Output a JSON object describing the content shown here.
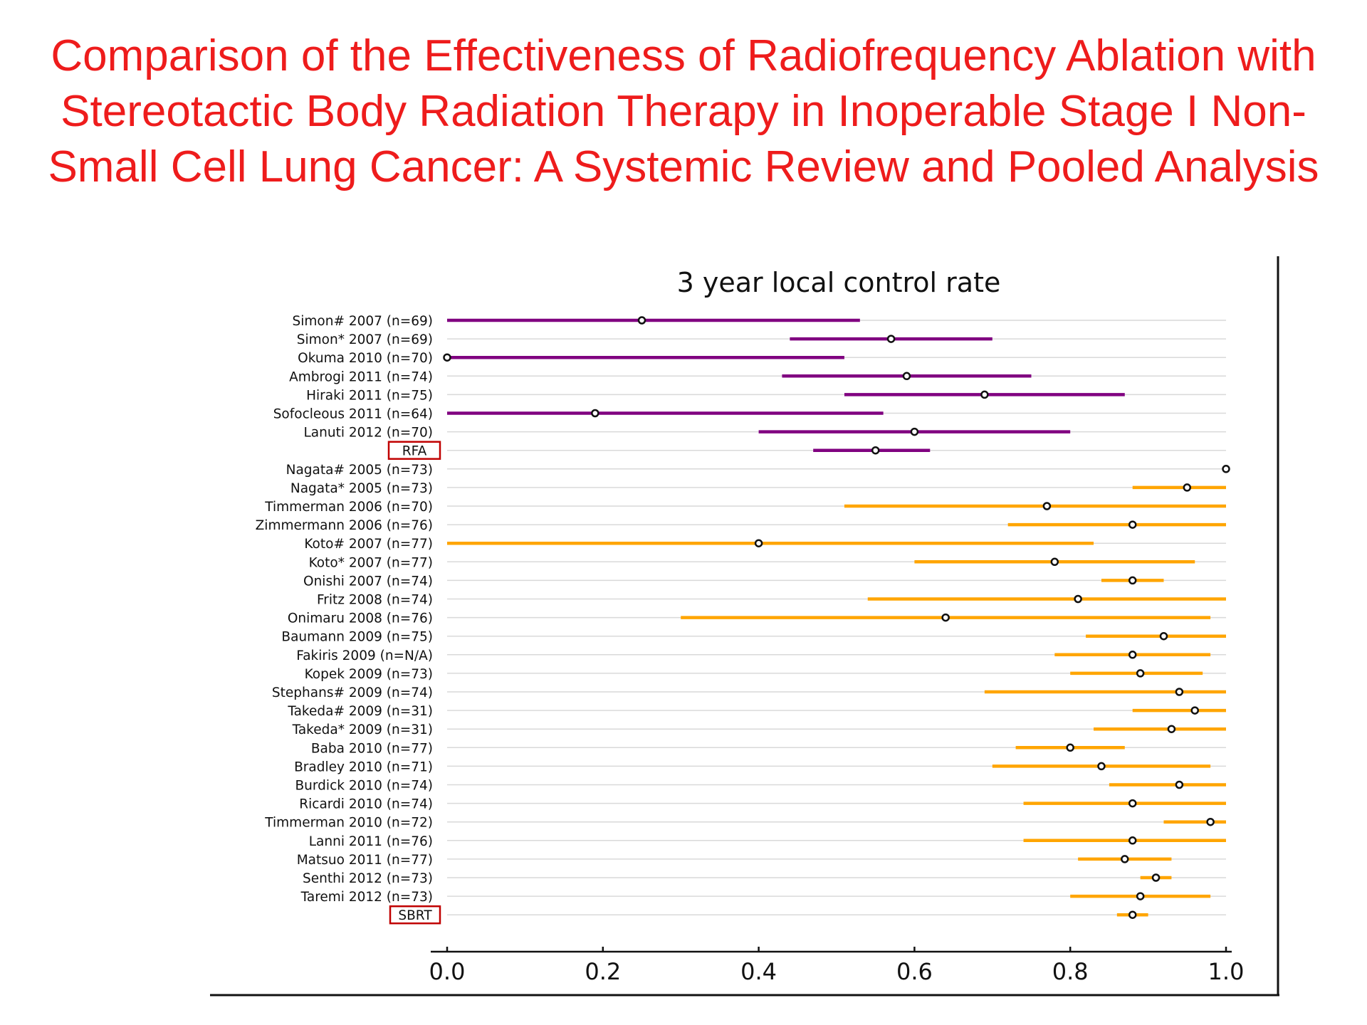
{
  "slide": {
    "title_lines": [
      "Comparison of the Effectiveness of Radiofrequency Ablation with",
      "Stereotactic Body Radiation Therapy in Inoperable Stage I Non-",
      "Small Cell Lung Cancer: A Systemic Review and Pooled Analysis"
    ]
  },
  "chart_data": {
    "type": "forest",
    "title": "3 year local control rate",
    "xlabel": "",
    "ylabel": "",
    "xlim": [
      0.0,
      1.0
    ],
    "x_ticks": [
      "0.0",
      "0.2",
      "0.4",
      "0.6",
      "0.8",
      "1.0"
    ],
    "grid": "horizontal",
    "colors": {
      "RFA": "#800080",
      "SBRT": "#ffa500",
      "title": "#ee1c1c",
      "box": "#c00000"
    },
    "rows": [
      {
        "label": "Simon# 2007 (n=69)",
        "group": "RFA",
        "estimate": 0.25,
        "ci": [
          0.0,
          0.53
        ]
      },
      {
        "label": "Simon* 2007 (n=69)",
        "group": "RFA",
        "estimate": 0.57,
        "ci": [
          0.44,
          0.7
        ]
      },
      {
        "label": "Okuma 2010 (n=70)",
        "group": "RFA",
        "estimate": 0.0,
        "ci": [
          0.0,
          0.51
        ]
      },
      {
        "label": "Ambrogi 2011 (n=74)",
        "group": "RFA",
        "estimate": 0.59,
        "ci": [
          0.43,
          0.75
        ]
      },
      {
        "label": "Hiraki 2011 (n=75)",
        "group": "RFA",
        "estimate": 0.69,
        "ci": [
          0.51,
          0.87
        ]
      },
      {
        "label": "Sofocleous 2011 (n=64)",
        "group": "RFA",
        "estimate": 0.19,
        "ci": [
          0.0,
          0.56
        ]
      },
      {
        "label": "Lanuti 2012 (n=70)",
        "group": "RFA",
        "estimate": 0.6,
        "ci": [
          0.4,
          0.8
        ]
      },
      {
        "label": "RFA",
        "group": "RFA",
        "estimate": 0.55,
        "ci": [
          0.47,
          0.62
        ],
        "pooled": true
      },
      {
        "label": "Nagata# 2005 (n=73)",
        "group": "SBRT",
        "estimate": 1.0,
        "ci": [
          1.0,
          1.0
        ]
      },
      {
        "label": "Nagata* 2005 (n=73)",
        "group": "SBRT",
        "estimate": 0.95,
        "ci": [
          0.88,
          1.0
        ]
      },
      {
        "label": "Timmerman 2006 (n=70)",
        "group": "SBRT",
        "estimate": 0.77,
        "ci": [
          0.51,
          1.0
        ]
      },
      {
        "label": "Zimmermann 2006 (n=76)",
        "group": "SBRT",
        "estimate": 0.88,
        "ci": [
          0.72,
          1.0
        ]
      },
      {
        "label": "Koto# 2007 (n=77)",
        "group": "SBRT",
        "estimate": 0.4,
        "ci": [
          0.0,
          0.83
        ]
      },
      {
        "label": "Koto* 2007 (n=77)",
        "group": "SBRT",
        "estimate": 0.78,
        "ci": [
          0.6,
          0.96
        ]
      },
      {
        "label": "Onishi 2007 (n=74)",
        "group": "SBRT",
        "estimate": 0.88,
        "ci": [
          0.84,
          0.92
        ]
      },
      {
        "label": "Fritz  2008 (n=74)",
        "group": "SBRT",
        "estimate": 0.81,
        "ci": [
          0.54,
          1.0
        ]
      },
      {
        "label": "Onimaru 2008 (n=76)",
        "group": "SBRT",
        "estimate": 0.64,
        "ci": [
          0.3,
          0.98
        ]
      },
      {
        "label": "Baumann  2009 (n=75)",
        "group": "SBRT",
        "estimate": 0.92,
        "ci": [
          0.82,
          1.0
        ]
      },
      {
        "label": "Fakiris 2009 (n=N/A)",
        "group": "SBRT",
        "estimate": 0.88,
        "ci": [
          0.78,
          0.98
        ]
      },
      {
        "label": "Kopek 2009 (n=73)",
        "group": "SBRT",
        "estimate": 0.89,
        "ci": [
          0.8,
          0.97
        ]
      },
      {
        "label": "Stephans# 2009 (n=74)",
        "group": "SBRT",
        "estimate": 0.94,
        "ci": [
          0.69,
          1.0
        ]
      },
      {
        "label": "Takeda# 2009 (n=31)",
        "group": "SBRT",
        "estimate": 0.96,
        "ci": [
          0.88,
          1.0
        ]
      },
      {
        "label": "Takeda* 2009 (n=31)",
        "group": "SBRT",
        "estimate": 0.93,
        "ci": [
          0.83,
          1.0
        ]
      },
      {
        "label": "Baba  2010 (n=77)",
        "group": "SBRT",
        "estimate": 0.8,
        "ci": [
          0.73,
          0.87
        ]
      },
      {
        "label": "Bradley  2010 (n=71)",
        "group": "SBRT",
        "estimate": 0.84,
        "ci": [
          0.7,
          0.98
        ]
      },
      {
        "label": "Burdick  2010 (n=74)",
        "group": "SBRT",
        "estimate": 0.94,
        "ci": [
          0.85,
          1.0
        ]
      },
      {
        "label": "Ricardi 2010 (n=74)",
        "group": "SBRT",
        "estimate": 0.88,
        "ci": [
          0.74,
          1.0
        ]
      },
      {
        "label": "Timmerman 2010 (n=72)",
        "group": "SBRT",
        "estimate": 0.98,
        "ci": [
          0.92,
          1.0
        ]
      },
      {
        "label": "Lanni 2011 (n=76)",
        "group": "SBRT",
        "estimate": 0.88,
        "ci": [
          0.74,
          1.0
        ]
      },
      {
        "label": "Matsuo 2011 (n=77)",
        "group": "SBRT",
        "estimate": 0.87,
        "ci": [
          0.81,
          0.93
        ]
      },
      {
        "label": "Senthi 2012 (n=73)",
        "group": "SBRT",
        "estimate": 0.91,
        "ci": [
          0.89,
          0.93
        ]
      },
      {
        "label": "Taremi 2012 (n=73)",
        "group": "SBRT",
        "estimate": 0.89,
        "ci": [
          0.8,
          0.98
        ]
      },
      {
        "label": "SBRT",
        "group": "SBRT",
        "estimate": 0.88,
        "ci": [
          0.86,
          0.9
        ],
        "pooled": true
      }
    ]
  }
}
